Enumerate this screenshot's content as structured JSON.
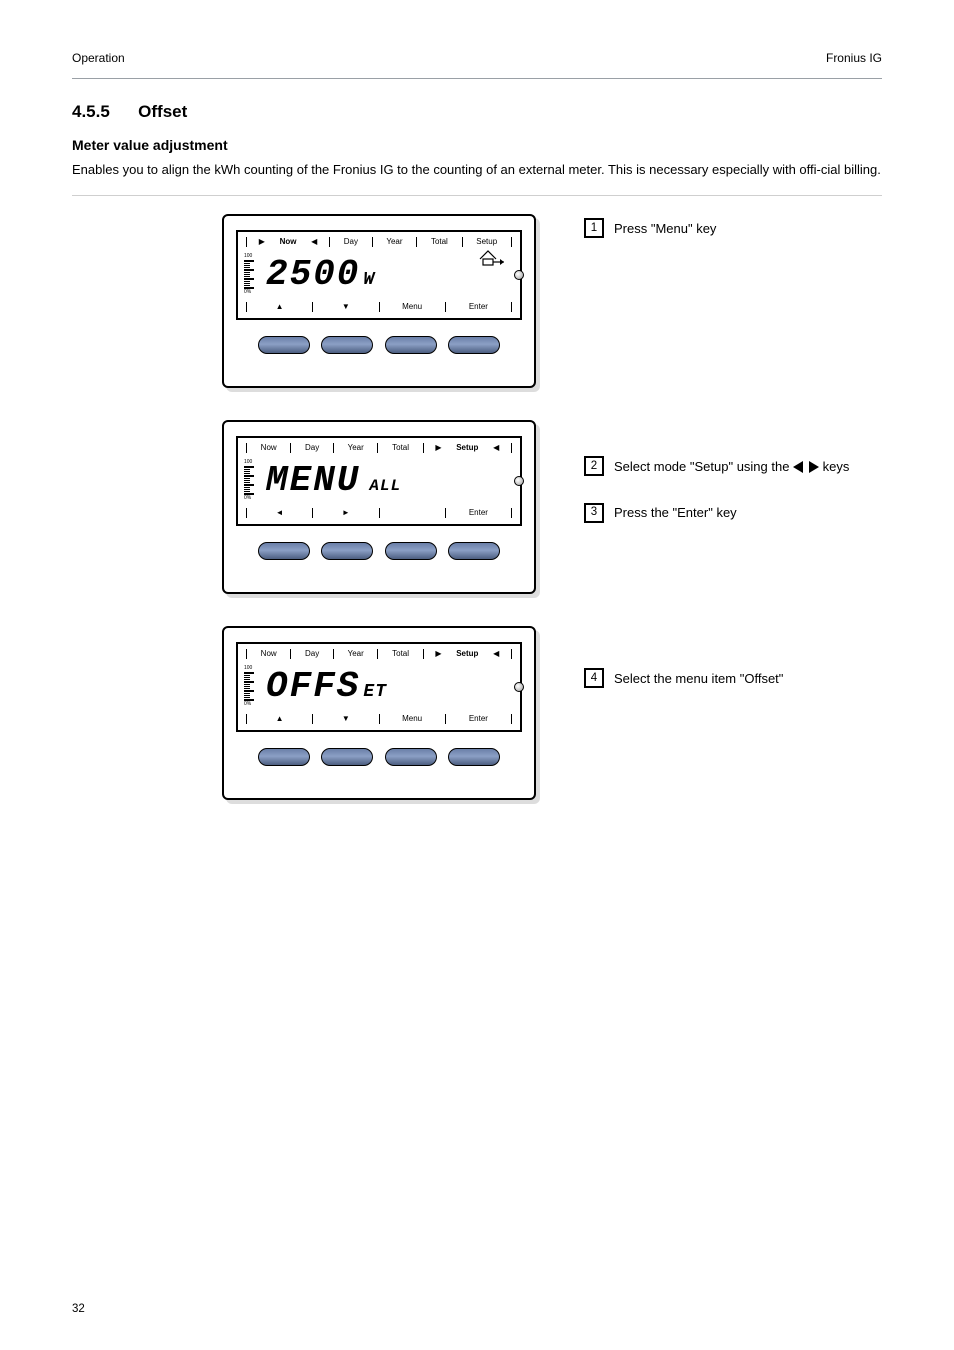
{
  "page": {
    "header_left": "Operation",
    "header_right": "Fronius IG",
    "footer": "32",
    "section_no": "4.5.5",
    "section_title": "Offset",
    "subtitle": "Meter value adjustment",
    "intro": "Enables you to align the kWh counting of the Fronius IG to the counting of an external meter. This is necessary especially with offi-cial billing."
  },
  "tabs": [
    "Now",
    "Day",
    "Year",
    "Total",
    "Setup"
  ],
  "steps": [
    {
      "id": 1,
      "device": {
        "selected_tab": 0,
        "seg_main": "2500",
        "seg_unit": "W",
        "seg_extra": "",
        "show_house": true,
        "bottom": [
          "▲",
          "▼",
          "Menu",
          "Enter"
        ]
      },
      "captions": [
        {
          "num": "1",
          "text": "Press \"Menu\" key"
        }
      ]
    },
    {
      "id": 2,
      "device": {
        "selected_tab": 4,
        "seg_main": "MENU",
        "seg_unit": "",
        "seg_extra": "ALL",
        "show_house": false,
        "bottom": [
          "◄",
          "►",
          "",
          "Enter"
        ]
      },
      "captions": [
        {
          "num": "2",
          "text": "Select mode \"Setup\" using the      keys",
          "show_arrows": true
        },
        {
          "num": "3",
          "text": "Press the \"Enter\" key"
        }
      ]
    },
    {
      "id": 3,
      "device": {
        "selected_tab": 4,
        "seg_main": "OFFS",
        "seg_unit": "",
        "seg_extra": "ET",
        "seg_inline": true,
        "show_house": false,
        "bottom": [
          "▲",
          "▼",
          "Menu",
          "Enter"
        ]
      },
      "captions": [
        {
          "num": "4",
          "text": "Select the menu item \"Offset\""
        }
      ]
    }
  ],
  "colors": {
    "button_gradient_top": "#6a7fa8",
    "button_gradient_mid": "#8b9fc5",
    "button_gradient_bot": "#4c5e80",
    "rule": "#cfcfcf"
  }
}
